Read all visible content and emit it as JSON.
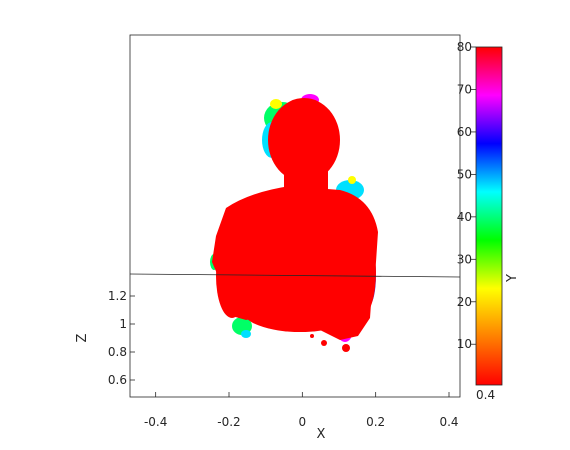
{
  "chart_data": {
    "type": "scatter",
    "title": "",
    "xlabel": "X",
    "ylabel": "Z",
    "colorbar_label": "Y",
    "x_ticks": [
      "-0.4",
      "-0.2",
      "0",
      "0.2",
      "0.4"
    ],
    "z_ticks": [
      "0.6",
      "0.8",
      "1",
      "1.2"
    ],
    "colorbar_ticks": [
      "0.4",
      "10",
      "20",
      "30",
      "40",
      "50",
      "60",
      "70",
      "80"
    ],
    "colorbar_range": [
      0.4,
      80
    ],
    "colormap": [
      "#ff0000",
      "#ff8000",
      "#ffff00",
      "#00ff00",
      "#00ffff",
      "#0000ff",
      "#ff00ff",
      "#ff0000"
    ],
    "xlim": [
      -0.47,
      0.43
    ],
    "colors": {
      "point_main": "#ff0000",
      "point_halo_green": "#00ff66",
      "point_halo_cyan": "#00e0ff",
      "point_halo_blue": "#2040ff",
      "point_halo_magenta": "#ff00ff",
      "axis": "#262626"
    }
  }
}
